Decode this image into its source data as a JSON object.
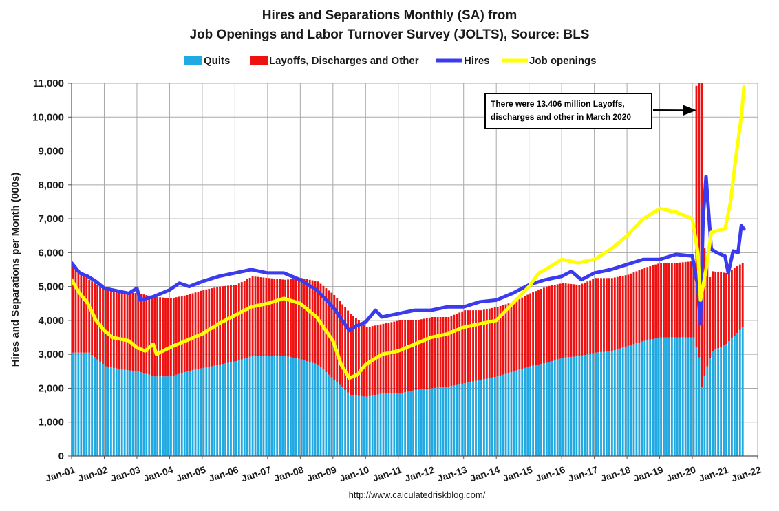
{
  "chart_data": {
    "type": "bar+line",
    "title": [
      "Hires and Separations Monthly (SA) from",
      "Job Openings and Labor Turnover Survey (JOLTS), Source: BLS"
    ],
    "ylabel": "Hires and Separations per Month (000s)",
    "xlabel": "",
    "ylim": [
      0,
      11000
    ],
    "yticks": [
      0,
      1000,
      2000,
      3000,
      4000,
      5000,
      6000,
      7000,
      8000,
      9000,
      10000,
      11000
    ],
    "ytick_labels": [
      "0",
      "1,000",
      "2,000",
      "3,000",
      "4,000",
      "5,000",
      "6,000",
      "7,000",
      "8,000",
      "9,000",
      "10,000",
      "11,000"
    ],
    "xlim": [
      2001.0,
      2022.0
    ],
    "xtick_labels": [
      "Jan-01",
      "Jan-02",
      "Jan-03",
      "Jan-04",
      "Jan-05",
      "Jan-06",
      "Jan-07",
      "Jan-08",
      "Jan-09",
      "Jan-10",
      "Jan-11",
      "Jan-12",
      "Jan-13",
      "Jan-14",
      "Jan-15",
      "Jan-16",
      "Jan-17",
      "Jan-18",
      "Jan-19",
      "Jan-20",
      "Jan-21",
      "Jan-22"
    ],
    "grid": true,
    "legend_position": "top",
    "legend": [
      {
        "name": "Quits",
        "kind": "bar",
        "color": "#21a9e1"
      },
      {
        "name": "Layoffs, Discharges and Other",
        "kind": "bar",
        "color": "#ee1111"
      },
      {
        "name": "Hires",
        "kind": "line",
        "color": "#3a3aee"
      },
      {
        "name": "Job openings",
        "kind": "line",
        "color": "#ffff00"
      }
    ],
    "series": [
      {
        "name": "Quits",
        "kind": "stacked-bar",
        "color": "#21a9e1",
        "anchors": [
          [
            2001.0,
            3050
          ],
          [
            2001.5,
            3050
          ],
          [
            2002.0,
            2650
          ],
          [
            2002.5,
            2550
          ],
          [
            2003.0,
            2500
          ],
          [
            2003.5,
            2350
          ],
          [
            2004.0,
            2350
          ],
          [
            2004.5,
            2500
          ],
          [
            2005.0,
            2600
          ],
          [
            2005.5,
            2700
          ],
          [
            2006.0,
            2800
          ],
          [
            2006.5,
            2950
          ],
          [
            2007.0,
            2950
          ],
          [
            2007.5,
            2950
          ],
          [
            2008.0,
            2850
          ],
          [
            2008.5,
            2700
          ],
          [
            2009.0,
            2250
          ],
          [
            2009.5,
            1800
          ],
          [
            2010.0,
            1750
          ],
          [
            2010.5,
            1850
          ],
          [
            2011.0,
            1850
          ],
          [
            2011.5,
            1950
          ],
          [
            2012.0,
            2000
          ],
          [
            2012.5,
            2050
          ],
          [
            2013.0,
            2150
          ],
          [
            2013.5,
            2250
          ],
          [
            2014.0,
            2350
          ],
          [
            2014.5,
            2500
          ],
          [
            2015.0,
            2650
          ],
          [
            2015.5,
            2750
          ],
          [
            2016.0,
            2900
          ],
          [
            2016.5,
            2950
          ],
          [
            2017.0,
            3050
          ],
          [
            2017.5,
            3100
          ],
          [
            2018.0,
            3250
          ],
          [
            2018.5,
            3400
          ],
          [
            2019.0,
            3500
          ],
          [
            2019.5,
            3500
          ],
          [
            2020.0,
            3500
          ],
          [
            2020.17,
            2900
          ],
          [
            2020.25,
            2050
          ],
          [
            2020.4,
            2600
          ],
          [
            2020.58,
            3100
          ],
          [
            2021.0,
            3300
          ],
          [
            2021.25,
            3550
          ],
          [
            2021.5,
            3800
          ],
          [
            2021.58,
            4000
          ]
        ]
      },
      {
        "name": "Layoffs, Discharges and Other",
        "kind": "stacked-bar",
        "color": "#ee1111",
        "anchors": [
          [
            2001.0,
            2550
          ],
          [
            2001.5,
            2150
          ],
          [
            2002.0,
            2250
          ],
          [
            2002.5,
            2300
          ],
          [
            2003.0,
            2300
          ],
          [
            2003.5,
            2350
          ],
          [
            2004.0,
            2300
          ],
          [
            2004.5,
            2250
          ],
          [
            2005.0,
            2300
          ],
          [
            2005.5,
            2300
          ],
          [
            2006.0,
            2250
          ],
          [
            2006.5,
            2350
          ],
          [
            2007.0,
            2300
          ],
          [
            2007.5,
            2250
          ],
          [
            2008.0,
            2400
          ],
          [
            2008.5,
            2450
          ],
          [
            2009.0,
            2500
          ],
          [
            2009.5,
            2400
          ],
          [
            2010.0,
            2050
          ],
          [
            2010.5,
            2050
          ],
          [
            2011.0,
            2150
          ],
          [
            2011.5,
            2050
          ],
          [
            2012.0,
            2100
          ],
          [
            2012.5,
            2050
          ],
          [
            2013.0,
            2150
          ],
          [
            2013.5,
            2050
          ],
          [
            2014.0,
            2050
          ],
          [
            2014.5,
            2050
          ],
          [
            2015.0,
            2150
          ],
          [
            2015.5,
            2250
          ],
          [
            2016.0,
            2200
          ],
          [
            2016.5,
            2100
          ],
          [
            2017.0,
            2200
          ],
          [
            2017.5,
            2150
          ],
          [
            2018.0,
            2100
          ],
          [
            2018.5,
            2150
          ],
          [
            2019.0,
            2200
          ],
          [
            2019.5,
            2200
          ],
          [
            2020.0,
            2250
          ],
          [
            2020.17,
            13406
          ],
          [
            2020.25,
            11500
          ],
          [
            2020.33,
            3800
          ],
          [
            2020.5,
            2400
          ],
          [
            2021.0,
            2100
          ],
          [
            2021.25,
            2000
          ],
          [
            2021.5,
            1900
          ],
          [
            2021.58,
            1800
          ]
        ],
        "annotated_peak": 13406
      },
      {
        "name": "Hires",
        "kind": "line",
        "color": "#3a3aee",
        "anchors": [
          [
            2001.0,
            5700
          ],
          [
            2001.25,
            5400
          ],
          [
            2001.5,
            5300
          ],
          [
            2001.75,
            5150
          ],
          [
            2002.0,
            4950
          ],
          [
            2002.25,
            4900
          ],
          [
            2002.5,
            4850
          ],
          [
            2002.75,
            4800
          ],
          [
            2003.0,
            4950
          ],
          [
            2003.1,
            4600
          ],
          [
            2003.5,
            4700
          ],
          [
            2004.0,
            4900
          ],
          [
            2004.3,
            5100
          ],
          [
            2004.6,
            5000
          ],
          [
            2005.0,
            5150
          ],
          [
            2005.5,
            5300
          ],
          [
            2006.0,
            5400
          ],
          [
            2006.5,
            5500
          ],
          [
            2007.0,
            5400
          ],
          [
            2007.5,
            5400
          ],
          [
            2008.0,
            5200
          ],
          [
            2008.5,
            4900
          ],
          [
            2009.0,
            4400
          ],
          [
            2009.5,
            3700
          ],
          [
            2009.75,
            3850
          ],
          [
            2010.0,
            3950
          ],
          [
            2010.3,
            4300
          ],
          [
            2010.5,
            4100
          ],
          [
            2011.0,
            4200
          ],
          [
            2011.5,
            4300
          ],
          [
            2012.0,
            4300
          ],
          [
            2012.5,
            4400
          ],
          [
            2013.0,
            4400
          ],
          [
            2013.5,
            4550
          ],
          [
            2014.0,
            4600
          ],
          [
            2014.5,
            4800
          ],
          [
            2015.0,
            5050
          ],
          [
            2015.5,
            5200
          ],
          [
            2016.0,
            5300
          ],
          [
            2016.3,
            5450
          ],
          [
            2016.6,
            5200
          ],
          [
            2017.0,
            5400
          ],
          [
            2017.5,
            5500
          ],
          [
            2018.0,
            5650
          ],
          [
            2018.5,
            5800
          ],
          [
            2019.0,
            5800
          ],
          [
            2019.5,
            5950
          ],
          [
            2020.0,
            5900
          ],
          [
            2020.17,
            5000
          ],
          [
            2020.25,
            3900
          ],
          [
            2020.33,
            7000
          ],
          [
            2020.42,
            8250
          ],
          [
            2020.58,
            6100
          ],
          [
            2020.75,
            6000
          ],
          [
            2021.0,
            5900
          ],
          [
            2021.1,
            5400
          ],
          [
            2021.25,
            6050
          ],
          [
            2021.4,
            6000
          ],
          [
            2021.5,
            6800
          ],
          [
            2021.58,
            6700
          ]
        ]
      },
      {
        "name": "Job openings",
        "kind": "line",
        "color": "#ffff00",
        "anchors": [
          [
            2001.0,
            5200
          ],
          [
            2001.25,
            4800
          ],
          [
            2001.5,
            4500
          ],
          [
            2001.75,
            4000
          ],
          [
            2002.0,
            3700
          ],
          [
            2002.25,
            3500
          ],
          [
            2002.5,
            3450
          ],
          [
            2002.75,
            3400
          ],
          [
            2003.0,
            3200
          ],
          [
            2003.25,
            3100
          ],
          [
            2003.5,
            3300
          ],
          [
            2003.6,
            3000
          ],
          [
            2004.0,
            3200
          ],
          [
            2004.5,
            3400
          ],
          [
            2005.0,
            3600
          ],
          [
            2005.5,
            3900
          ],
          [
            2006.0,
            4150
          ],
          [
            2006.5,
            4400
          ],
          [
            2007.0,
            4500
          ],
          [
            2007.5,
            4650
          ],
          [
            2008.0,
            4500
          ],
          [
            2008.5,
            4100
          ],
          [
            2009.0,
            3400
          ],
          [
            2009.25,
            2700
          ],
          [
            2009.5,
            2300
          ],
          [
            2009.75,
            2400
          ],
          [
            2010.0,
            2700
          ],
          [
            2010.5,
            3000
          ],
          [
            2011.0,
            3100
          ],
          [
            2011.5,
            3300
          ],
          [
            2012.0,
            3500
          ],
          [
            2012.5,
            3600
          ],
          [
            2013.0,
            3800
          ],
          [
            2013.5,
            3900
          ],
          [
            2014.0,
            4000
          ],
          [
            2014.5,
            4500
          ],
          [
            2015.0,
            5000
          ],
          [
            2015.3,
            5400
          ],
          [
            2015.5,
            5500
          ],
          [
            2016.0,
            5800
          ],
          [
            2016.5,
            5700
          ],
          [
            2017.0,
            5800
          ],
          [
            2017.5,
            6100
          ],
          [
            2018.0,
            6500
          ],
          [
            2018.5,
            7000
          ],
          [
            2019.0,
            7300
          ],
          [
            2019.5,
            7200
          ],
          [
            2020.0,
            7000
          ],
          [
            2020.17,
            6000
          ],
          [
            2020.25,
            4600
          ],
          [
            2020.42,
            5500
          ],
          [
            2020.58,
            6600
          ],
          [
            2021.0,
            6700
          ],
          [
            2021.17,
            7500
          ],
          [
            2021.33,
            8800
          ],
          [
            2021.5,
            10000
          ],
          [
            2021.58,
            10900
          ]
        ]
      }
    ],
    "annotation": {
      "lines": [
        "There were 13.406 million Layoffs,",
        "discharges and other in March 2020"
      ],
      "target": [
        2020.17,
        10200
      ]
    },
    "source": "http://www.calculatedriskblog.com/"
  }
}
